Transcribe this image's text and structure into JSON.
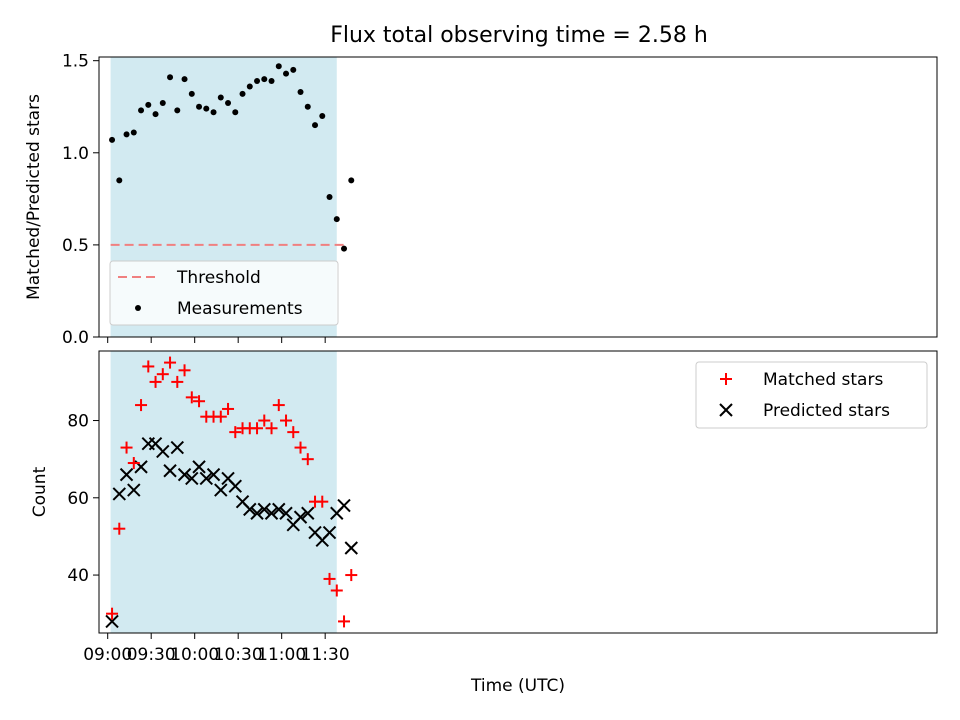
{
  "title": "Flux total observing time = 2.58 h",
  "colors": {
    "shade": "#add8e6",
    "threshold": "#f08080",
    "measurement": "#000000",
    "matched": "#ff0000",
    "predicted": "#000000"
  },
  "chart_data": [
    {
      "type": "scatter",
      "ylabel": "Matched/Predicted stars",
      "xlabel": "",
      "ylim": [
        0.0,
        1.52
      ],
      "yticks": [
        "0.0",
        "0.5",
        "1.0",
        "1.5"
      ],
      "shaded_interval": [
        "09:02",
        "11:38"
      ],
      "legend": {
        "placement": "lower-left",
        "entries": [
          "Threshold",
          "Measurements"
        ]
      },
      "threshold": {
        "name": "Threshold",
        "value": 0.5,
        "x": [
          "09:02",
          "11:45"
        ]
      },
      "series": [
        {
          "name": "Measurements",
          "x": [
            "09:03",
            "09:08",
            "09:13",
            "09:18",
            "09:23",
            "09:28",
            "09:33",
            "09:38",
            "09:43",
            "09:48",
            "09:53",
            "09:58",
            "10:03",
            "10:08",
            "10:13",
            "10:18",
            "10:23",
            "10:28",
            "10:33",
            "10:38",
            "10:43",
            "10:48",
            "10:53",
            "10:58",
            "11:03",
            "11:08",
            "11:13",
            "11:18",
            "11:23",
            "11:28",
            "11:33",
            "11:38",
            "11:43",
            "11:48"
          ],
          "values": [
            1.07,
            0.85,
            1.1,
            1.11,
            1.23,
            1.26,
            1.21,
            1.27,
            1.41,
            1.23,
            1.4,
            1.32,
            1.25,
            1.24,
            1.22,
            1.3,
            1.27,
            1.22,
            1.32,
            1.36,
            1.39,
            1.4,
            1.39,
            1.47,
            1.43,
            1.45,
            1.33,
            1.25,
            1.15,
            1.2,
            0.76,
            0.64,
            0.48,
            0.85
          ]
        }
      ]
    },
    {
      "type": "scatter",
      "ylabel": "Count",
      "xlabel": "Time (UTC)",
      "ylim": [
        25,
        98
      ],
      "yticks": [
        "40",
        "60",
        "80"
      ],
      "xticks": [
        "09:00",
        "09:30",
        "10:00",
        "10:30",
        "11:00",
        "11:30"
      ],
      "shaded_interval": [
        "09:02",
        "11:38"
      ],
      "legend": {
        "placement": "top-right",
        "entries": [
          "Matched stars",
          "Predicted stars"
        ]
      },
      "series": [
        {
          "name": "Matched stars",
          "marker": "plus",
          "x": [
            "09:03",
            "09:08",
            "09:13",
            "09:18",
            "09:23",
            "09:28",
            "09:33",
            "09:38",
            "09:43",
            "09:48",
            "09:53",
            "09:58",
            "10:03",
            "10:08",
            "10:13",
            "10:18",
            "10:23",
            "10:28",
            "10:33",
            "10:38",
            "10:43",
            "10:48",
            "10:53",
            "10:58",
            "11:03",
            "11:08",
            "11:13",
            "11:18",
            "11:23",
            "11:28",
            "11:33",
            "11:38",
            "11:43",
            "11:48"
          ],
          "values": [
            30,
            52,
            73,
            69,
            84,
            94,
            90,
            92,
            95,
            90,
            93,
            86,
            85,
            81,
            81,
            81,
            83,
            77,
            78,
            78,
            78,
            80,
            78,
            84,
            80,
            77,
            73,
            70,
            59,
            59,
            39,
            36,
            28,
            40
          ]
        },
        {
          "name": "Predicted stars",
          "marker": "x",
          "x": [
            "09:03",
            "09:08",
            "09:13",
            "09:18",
            "09:23",
            "09:28",
            "09:33",
            "09:38",
            "09:43",
            "09:48",
            "09:53",
            "09:58",
            "10:03",
            "10:08",
            "10:13",
            "10:18",
            "10:23",
            "10:28",
            "10:33",
            "10:38",
            "10:43",
            "10:48",
            "10:53",
            "10:58",
            "11:03",
            "11:08",
            "11:13",
            "11:18",
            "11:23",
            "11:28",
            "11:33",
            "11:38",
            "11:43",
            "11:48"
          ],
          "values": [
            28,
            61,
            66,
            62,
            68,
            74,
            74,
            72,
            67,
            73,
            66,
            65,
            68,
            65,
            66,
            62,
            65,
            63,
            59,
            57,
            56,
            57,
            56,
            57,
            56,
            53,
            55,
            56,
            51,
            49,
            51,
            56,
            58,
            47
          ]
        }
      ]
    }
  ]
}
